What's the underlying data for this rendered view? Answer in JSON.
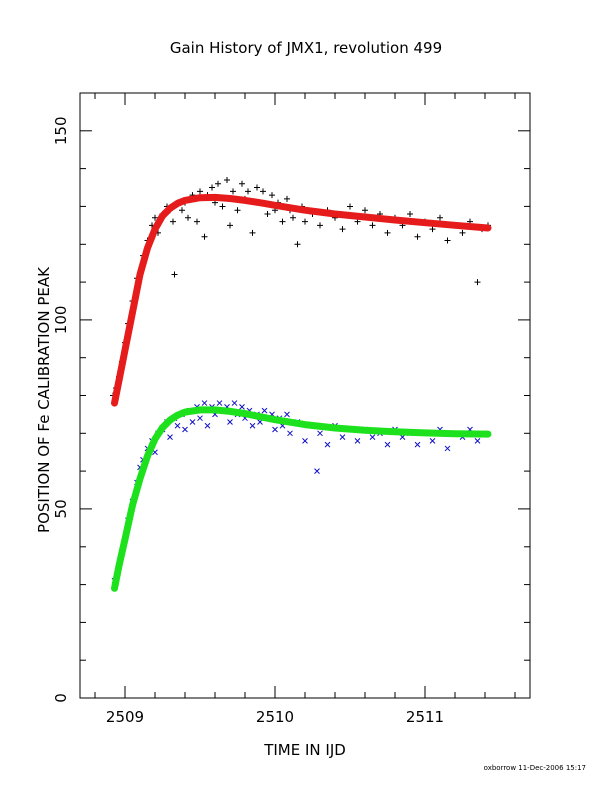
{
  "chart_data": {
    "type": "scatter",
    "title": "Gain History of JMX1, revolution 499",
    "xlabel": "TIME IN IJD",
    "ylabel": "POSITION OF Fe CALIBRATION PEAK",
    "xlim": [
      2508.7,
      2511.7
    ],
    "ylim": [
      0,
      160
    ],
    "x_ticks": [
      2509,
      2510,
      2511
    ],
    "x_tick_labels": [
      "2509",
      "2510",
      "2511"
    ],
    "x_minor_step": 0.2,
    "y_ticks": [
      0,
      50,
      100,
      150
    ],
    "y_tick_labels": [
      "0",
      "50",
      "100",
      "150"
    ],
    "y_minor_step": 10,
    "grid": false,
    "legend": "none",
    "series": [
      {
        "marker": "plus",
        "color": "#000000",
        "points": [
          [
            2508.92,
            80
          ],
          [
            2508.94,
            82
          ],
          [
            2508.96,
            85
          ],
          [
            2508.98,
            89
          ],
          [
            2509.0,
            94
          ],
          [
            2509.02,
            99
          ],
          [
            2509.05,
            105
          ],
          [
            2509.08,
            111
          ],
          [
            2509.12,
            117
          ],
          [
            2509.15,
            121
          ],
          [
            2509.18,
            125
          ],
          [
            2509.2,
            127
          ],
          [
            2509.22,
            123
          ],
          [
            2509.25,
            128
          ],
          [
            2509.28,
            130
          ],
          [
            2509.3,
            129
          ],
          [
            2509.32,
            126
          ],
          [
            2509.33,
            112
          ],
          [
            2509.35,
            131
          ],
          [
            2509.38,
            129
          ],
          [
            2509.4,
            131
          ],
          [
            2509.42,
            127
          ],
          [
            2509.45,
            133
          ],
          [
            2509.48,
            126
          ],
          [
            2509.5,
            134
          ],
          [
            2509.53,
            122
          ],
          [
            2509.55,
            133
          ],
          [
            2509.58,
            135
          ],
          [
            2509.6,
            131
          ],
          [
            2509.62,
            136
          ],
          [
            2509.65,
            130
          ],
          [
            2509.68,
            137
          ],
          [
            2509.7,
            125
          ],
          [
            2509.72,
            134
          ],
          [
            2509.75,
            129
          ],
          [
            2509.78,
            136
          ],
          [
            2509.8,
            132
          ],
          [
            2509.82,
            134
          ],
          [
            2509.85,
            123
          ],
          [
            2509.88,
            135
          ],
          [
            2509.9,
            131
          ],
          [
            2509.92,
            134
          ],
          [
            2509.95,
            128
          ],
          [
            2509.98,
            133
          ],
          [
            2510.0,
            129
          ],
          [
            2510.02,
            131
          ],
          [
            2510.05,
            126
          ],
          [
            2510.08,
            132
          ],
          [
            2510.1,
            129
          ],
          [
            2510.12,
            127
          ],
          [
            2510.15,
            120
          ],
          [
            2510.18,
            130
          ],
          [
            2510.2,
            126
          ],
          [
            2510.25,
            128
          ],
          [
            2510.3,
            125
          ],
          [
            2510.35,
            129
          ],
          [
            2510.4,
            127
          ],
          [
            2510.45,
            124
          ],
          [
            2510.5,
            130
          ],
          [
            2510.55,
            126
          ],
          [
            2510.6,
            129
          ],
          [
            2510.65,
            125
          ],
          [
            2510.7,
            128
          ],
          [
            2510.75,
            123
          ],
          [
            2510.8,
            127
          ],
          [
            2510.85,
            125
          ],
          [
            2510.9,
            128
          ],
          [
            2510.95,
            122
          ],
          [
            2511.0,
            126
          ],
          [
            2511.05,
            124
          ],
          [
            2511.1,
            127
          ],
          [
            2511.15,
            121
          ],
          [
            2511.2,
            125
          ],
          [
            2511.25,
            123
          ],
          [
            2511.3,
            126
          ],
          [
            2511.35,
            110
          ],
          [
            2511.38,
            124
          ],
          [
            2511.42,
            125
          ]
        ]
      },
      {
        "name": "",
        "marker": "cross",
        "color": "#1010c8",
        "points": [
          [
            2508.93,
            31
          ],
          [
            2508.95,
            33
          ],
          [
            2508.97,
            37
          ],
          [
            2509.0,
            42
          ],
          [
            2509.02,
            47
          ],
          [
            2509.05,
            52
          ],
          [
            2509.08,
            57
          ],
          [
            2509.1,
            61
          ],
          [
            2509.12,
            63
          ],
          [
            2509.15,
            66
          ],
          [
            2509.18,
            68
          ],
          [
            2509.2,
            65
          ],
          [
            2509.22,
            70
          ],
          [
            2509.25,
            71
          ],
          [
            2509.28,
            73
          ],
          [
            2509.3,
            69
          ],
          [
            2509.33,
            74
          ],
          [
            2509.35,
            72
          ],
          [
            2509.38,
            75
          ],
          [
            2509.4,
            71
          ],
          [
            2509.43,
            76
          ],
          [
            2509.45,
            73
          ],
          [
            2509.48,
            77
          ],
          [
            2509.5,
            74
          ],
          [
            2509.53,
            78
          ],
          [
            2509.55,
            72
          ],
          [
            2509.58,
            77
          ],
          [
            2509.6,
            75
          ],
          [
            2509.63,
            78
          ],
          [
            2509.65,
            76
          ],
          [
            2509.68,
            77
          ],
          [
            2509.7,
            73
          ],
          [
            2509.73,
            78
          ],
          [
            2509.75,
            75
          ],
          [
            2509.78,
            77
          ],
          [
            2509.8,
            74
          ],
          [
            2509.83,
            76
          ],
          [
            2509.85,
            72
          ],
          [
            2509.88,
            75
          ],
          [
            2509.9,
            73
          ],
          [
            2509.93,
            76
          ],
          [
            2509.95,
            74
          ],
          [
            2509.98,
            75
          ],
          [
            2510.0,
            71
          ],
          [
            2510.03,
            74
          ],
          [
            2510.05,
            72
          ],
          [
            2510.08,
            75
          ],
          [
            2510.1,
            70
          ],
          [
            2510.15,
            73
          ],
          [
            2510.2,
            68
          ],
          [
            2510.25,
            72
          ],
          [
            2510.28,
            60
          ],
          [
            2510.3,
            70
          ],
          [
            2510.35,
            67
          ],
          [
            2510.4,
            72
          ],
          [
            2510.45,
            69
          ],
          [
            2510.5,
            71
          ],
          [
            2510.55,
            68
          ],
          [
            2510.6,
            71
          ],
          [
            2510.65,
            69
          ],
          [
            2510.7,
            70
          ],
          [
            2510.75,
            67
          ],
          [
            2510.8,
            71
          ],
          [
            2510.85,
            69
          ],
          [
            2510.9,
            70
          ],
          [
            2510.95,
            67
          ],
          [
            2511.0,
            70
          ],
          [
            2511.05,
            68
          ],
          [
            2511.1,
            71
          ],
          [
            2511.15,
            66
          ],
          [
            2511.2,
            70
          ],
          [
            2511.25,
            69
          ],
          [
            2511.3,
            71
          ],
          [
            2511.35,
            68
          ],
          [
            2511.4,
            70
          ]
        ]
      }
    ],
    "fits": [
      {
        "color": "#e61c1c",
        "points": [
          [
            2508.93,
            78
          ],
          [
            2508.96,
            84
          ],
          [
            2509.0,
            92
          ],
          [
            2509.05,
            102
          ],
          [
            2509.1,
            112
          ],
          [
            2509.15,
            119
          ],
          [
            2509.2,
            124
          ],
          [
            2509.25,
            127.5
          ],
          [
            2509.3,
            129.5
          ],
          [
            2509.35,
            130.8
          ],
          [
            2509.4,
            131.6
          ],
          [
            2509.5,
            132.3
          ],
          [
            2509.6,
            132.4
          ],
          [
            2509.7,
            132.1
          ],
          [
            2509.8,
            131.6
          ],
          [
            2509.9,
            131
          ],
          [
            2510.0,
            130.3
          ],
          [
            2510.2,
            129
          ],
          [
            2510.4,
            128
          ],
          [
            2510.6,
            127.2
          ],
          [
            2510.8,
            126.4
          ],
          [
            2511.0,
            125.7
          ],
          [
            2511.2,
            125
          ],
          [
            2511.42,
            124.3
          ]
        ]
      },
      {
        "color": "#1ee11e",
        "points": [
          [
            2508.93,
            29
          ],
          [
            2508.96,
            35
          ],
          [
            2509.0,
            42
          ],
          [
            2509.05,
            51
          ],
          [
            2509.1,
            58
          ],
          [
            2509.15,
            64
          ],
          [
            2509.2,
            68.5
          ],
          [
            2509.25,
            71.5
          ],
          [
            2509.3,
            73.5
          ],
          [
            2509.35,
            74.8
          ],
          [
            2509.4,
            75.6
          ],
          [
            2509.5,
            76.2
          ],
          [
            2509.6,
            76.2
          ],
          [
            2509.7,
            75.8
          ],
          [
            2509.8,
            75.2
          ],
          [
            2509.9,
            74.4
          ],
          [
            2510.0,
            73.6
          ],
          [
            2510.2,
            72.3
          ],
          [
            2510.4,
            71.4
          ],
          [
            2510.6,
            70.8
          ],
          [
            2510.8,
            70.4
          ],
          [
            2511.0,
            70.1
          ],
          [
            2511.2,
            69.9
          ],
          [
            2511.42,
            69.8
          ]
        ]
      }
    ]
  },
  "footer": {
    "stamp": "oxborrow 11-Dec-2006 15:17"
  }
}
